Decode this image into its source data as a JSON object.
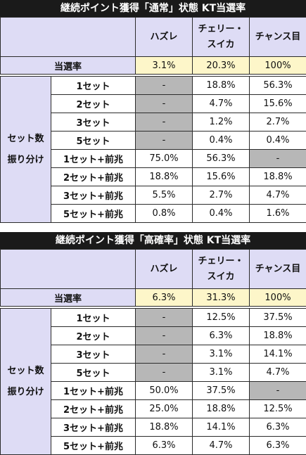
{
  "columns": [
    "ハズレ",
    "チェリー・\nスイカ",
    "チャンス目"
  ],
  "columns_line1": [
    "ハズレ",
    "チェリー・",
    "チャンス目"
  ],
  "columns_line2": [
    "",
    "スイカ",
    ""
  ],
  "group_label_line1": "セット数",
  "group_label_line2": "振り分け",
  "tables": [
    {
      "title": "継続ポイント獲得「通常」状態 KT当選率",
      "rate_label": "当選率",
      "rates": [
        "3.1%",
        "20.3%",
        "100%"
      ],
      "rows": [
        {
          "label": "1セット",
          "values": [
            "-",
            "18.8%",
            "56.3%"
          ]
        },
        {
          "label": "2セット",
          "values": [
            "-",
            "4.7%",
            "15.6%"
          ]
        },
        {
          "label": "3セット",
          "values": [
            "-",
            "1.2%",
            "2.7%"
          ]
        },
        {
          "label": "5セット",
          "values": [
            "-",
            "0.4%",
            "0.4%"
          ]
        },
        {
          "label": "1セット+前兆",
          "values": [
            "75.0%",
            "56.3%",
            "-"
          ]
        },
        {
          "label": "2セット+前兆",
          "values": [
            "18.8%",
            "15.6%",
            "18.8%"
          ]
        },
        {
          "label": "3セット+前兆",
          "values": [
            "5.5%",
            "2.7%",
            "4.7%"
          ]
        },
        {
          "label": "5セット+前兆",
          "values": [
            "0.8%",
            "0.4%",
            "1.6%"
          ]
        }
      ],
      "gray_cells": [
        [
          0,
          0
        ],
        [
          1,
          0
        ],
        [
          2,
          0
        ],
        [
          3,
          0
        ],
        [
          4,
          2
        ]
      ]
    },
    {
      "title": "継続ポイント獲得「高確率」状態 KT当選率",
      "rate_label": "当選率",
      "rates": [
        "6.3%",
        "31.3%",
        "100%"
      ],
      "rows": [
        {
          "label": "1セット",
          "values": [
            "-",
            "12.5%",
            "37.5%"
          ]
        },
        {
          "label": "2セット",
          "values": [
            "-",
            "6.3%",
            "18.8%"
          ]
        },
        {
          "label": "3セット",
          "values": [
            "-",
            "3.1%",
            "14.1%"
          ]
        },
        {
          "label": "5セット",
          "values": [
            "-",
            "3.1%",
            "4.7%"
          ]
        },
        {
          "label": "1セット+前兆",
          "values": [
            "50.0%",
            "37.5%",
            "-"
          ]
        },
        {
          "label": "2セット+前兆",
          "values": [
            "25.0%",
            "18.8%",
            "12.5%"
          ]
        },
        {
          "label": "3セット+前兆",
          "values": [
            "18.8%",
            "14.1%",
            "6.3%"
          ]
        },
        {
          "label": "5セット+前兆",
          "values": [
            "6.3%",
            "4.7%",
            "6.3%"
          ]
        }
      ],
      "gray_cells": [
        [
          0,
          0
        ],
        [
          1,
          0
        ],
        [
          2,
          0
        ],
        [
          3,
          0
        ],
        [
          4,
          2
        ]
      ]
    }
  ]
}
